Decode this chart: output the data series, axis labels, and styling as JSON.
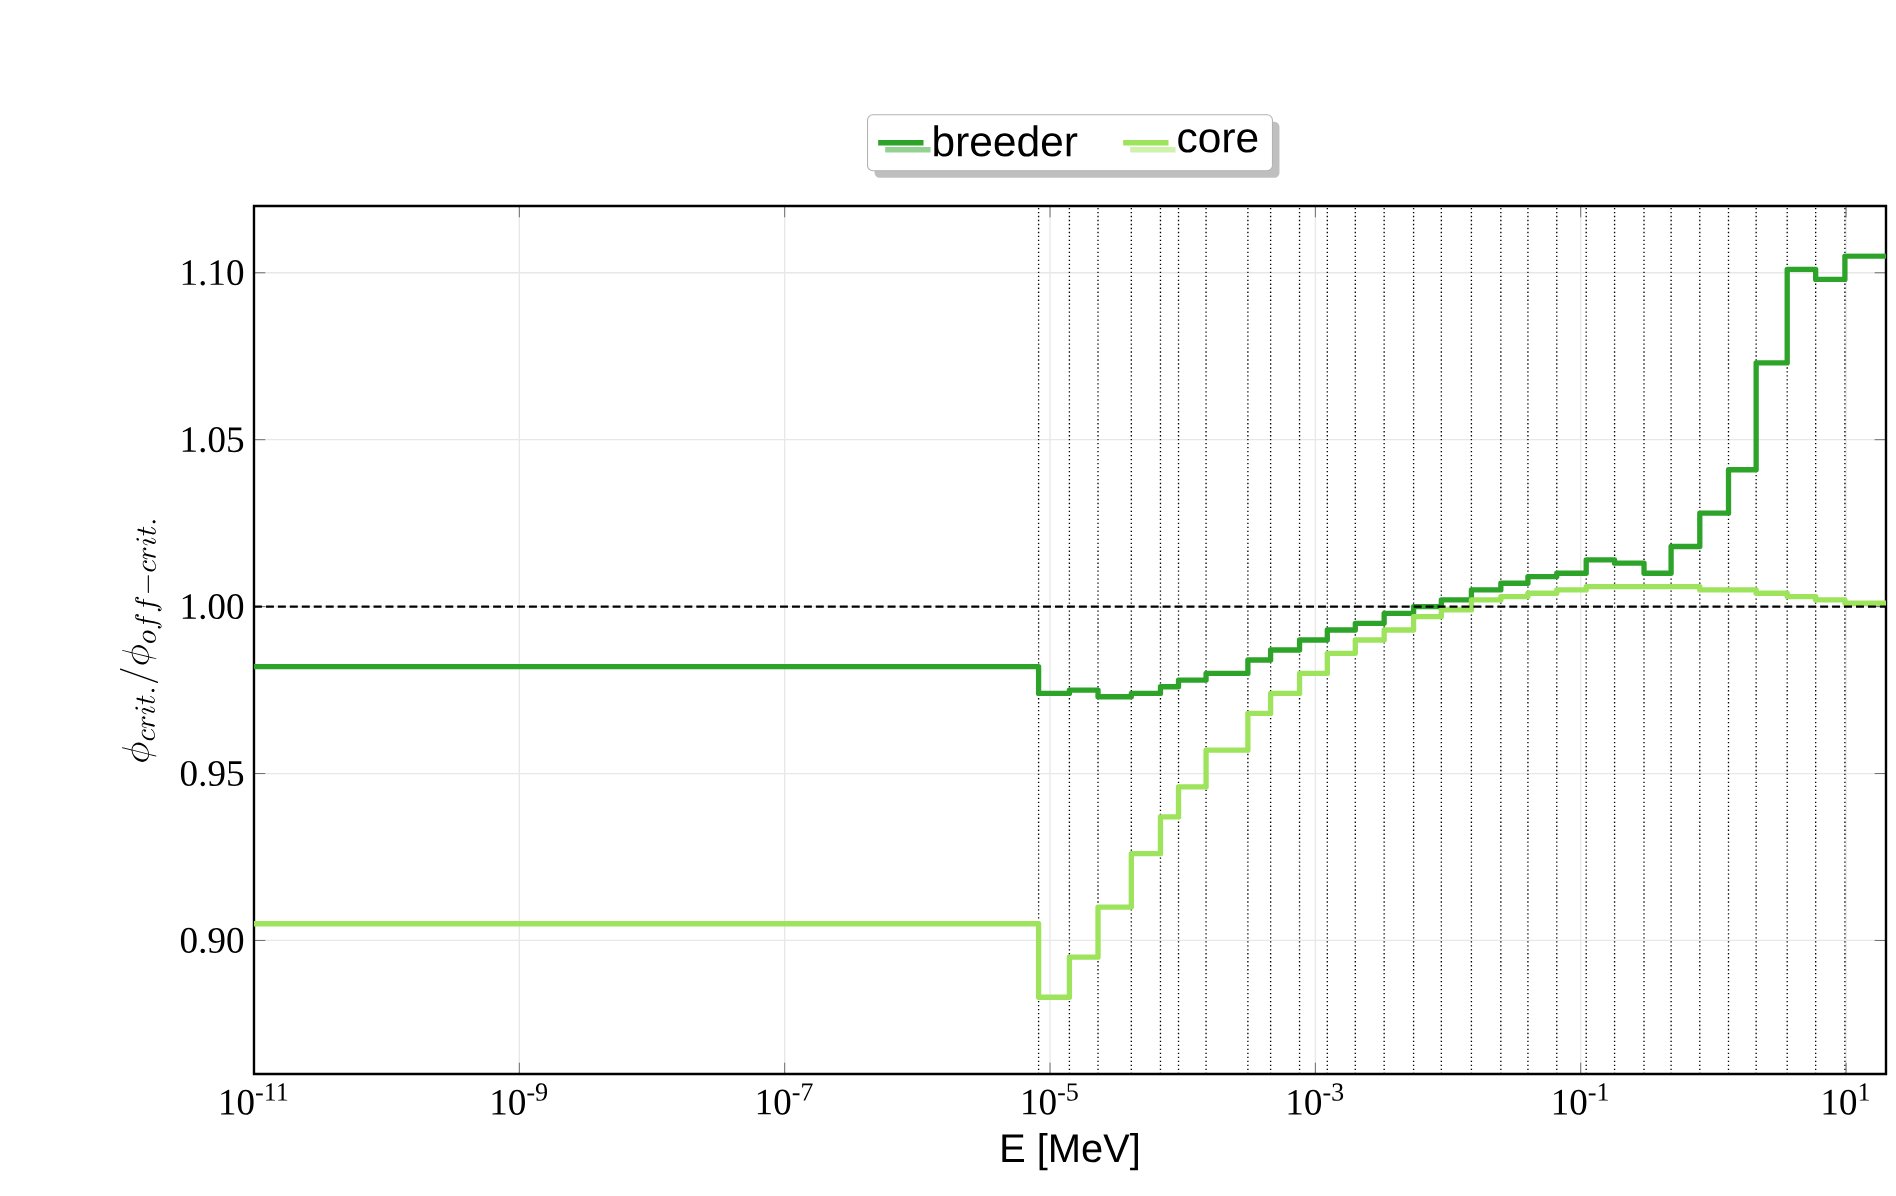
{
  "chart_data": {
    "type": "step",
    "xlabel": "E [MeV]",
    "ylabel": "\\phi_{crit.}/\\phi_{off-crit.}",
    "x": [
      1e-11,
      8.2e-06,
      1.4e-05,
      2.3e-05,
      4.1e-05,
      6.8e-05,
      9.3e-05,
      0.00015,
      0.00031,
      0.00046,
      0.00076,
      0.00123,
      0.002,
      0.0033,
      0.0055,
      0.0089,
      0.015,
      0.025,
      0.04,
      0.066,
      0.11,
      0.18,
      0.3,
      0.48,
      0.79,
      1.3,
      2.1,
      3.6,
      5.9,
      9.8
    ],
    "series": [
      {
        "name": "breeder",
        "color": "#2ea32a",
        "values": [
          0.982,
          0.974,
          0.975,
          0.973,
          0.974,
          0.976,
          0.978,
          0.98,
          0.984,
          0.987,
          0.99,
          0.993,
          0.995,
          0.998,
          1.0,
          1.002,
          1.005,
          1.007,
          1.009,
          1.01,
          1.014,
          1.013,
          1.01,
          1.018,
          1.028,
          1.041,
          1.073,
          1.101,
          1.098,
          1.105
        ]
      },
      {
        "name": "core",
        "color": "#9ee35c",
        "values": [
          0.905,
          0.883,
          0.895,
          0.91,
          0.926,
          0.937,
          0.946,
          0.957,
          0.968,
          0.974,
          0.98,
          0.986,
          0.99,
          0.993,
          0.997,
          0.999,
          1.002,
          1.003,
          1.004,
          1.005,
          1.006,
          1.006,
          1.006,
          1.006,
          1.005,
          1.005,
          1.004,
          1.003,
          1.002,
          1.001
        ]
      }
    ],
    "log": "x",
    "xlim": [
      1e-11,
      20
    ],
    "ylim": [
      0.86,
      1.12
    ],
    "xticks": [
      {
        "value": 1e-11,
        "label": "10$^{-11}$"
      },
      {
        "value": 1e-09,
        "label": "10$^{-9}$"
      },
      {
        "value": 1e-07,
        "label": "10$^{-7}$"
      },
      {
        "value": 1e-05,
        "label": "10$^{-5}$"
      },
      {
        "value": 0.001,
        "label": "10$^{-3}$"
      },
      {
        "value": 0.1,
        "label": "10$^{-1}$"
      },
      {
        "value": 10,
        "label": "10$^{1}$"
      }
    ],
    "yticks": [
      {
        "value": 0.9,
        "label": "0.90"
      },
      {
        "value": 0.95,
        "label": "0.95"
      },
      {
        "value": 1.0,
        "label": "1.00"
      },
      {
        "value": 1.05,
        "label": "1.05"
      },
      {
        "value": 1.1,
        "label": "1.10"
      }
    ],
    "grid": true,
    "legend": "top",
    "line_style": "solid",
    "ref_lines": [
      {
        "axis": "y",
        "value": 1.0,
        "color": "#000000",
        "line_style": "dashed"
      },
      {
        "axis": "x",
        "value": 8.2e-06,
        "color": "#000000",
        "line_style": "dotted"
      },
      {
        "axis": "x",
        "value": 1.4e-05,
        "color": "#000000",
        "line_style": "dotted"
      },
      {
        "axis": "x",
        "value": 2.3e-05,
        "color": "#000000",
        "line_style": "dotted"
      },
      {
        "axis": "x",
        "value": 4.1e-05,
        "color": "#000000",
        "line_style": "dotted"
      },
      {
        "axis": "x",
        "value": 6.8e-05,
        "color": "#000000",
        "line_style": "dotted"
      },
      {
        "axis": "x",
        "value": 9.3e-05,
        "color": "#000000",
        "line_style": "dotted"
      },
      {
        "axis": "x",
        "value": 0.00015,
        "color": "#000000",
        "line_style": "dotted"
      },
      {
        "axis": "x",
        "value": 0.00031,
        "color": "#000000",
        "line_style": "dotted"
      },
      {
        "axis": "x",
        "value": 0.00046,
        "color": "#000000",
        "line_style": "dotted"
      },
      {
        "axis": "x",
        "value": 0.00076,
        "color": "#000000",
        "line_style": "dotted"
      },
      {
        "axis": "x",
        "value": 0.00123,
        "color": "#000000",
        "line_style": "dotted"
      },
      {
        "axis": "x",
        "value": 0.002,
        "color": "#000000",
        "line_style": "dotted"
      },
      {
        "axis": "x",
        "value": 0.0033,
        "color": "#000000",
        "line_style": "dotted"
      },
      {
        "axis": "x",
        "value": 0.0055,
        "color": "#000000",
        "line_style": "dotted"
      },
      {
        "axis": "x",
        "value": 0.0089,
        "color": "#000000",
        "line_style": "dotted"
      },
      {
        "axis": "x",
        "value": 0.015,
        "color": "#000000",
        "line_style": "dotted"
      },
      {
        "axis": "x",
        "value": 0.025,
        "color": "#000000",
        "line_style": "dotted"
      },
      {
        "axis": "x",
        "value": 0.04,
        "color": "#000000",
        "line_style": "dotted"
      },
      {
        "axis": "x",
        "value": 0.066,
        "color": "#000000",
        "line_style": "dotted"
      },
      {
        "axis": "x",
        "value": 0.11,
        "color": "#000000",
        "line_style": "dotted"
      },
      {
        "axis": "x",
        "value": 0.18,
        "color": "#000000",
        "line_style": "dotted"
      },
      {
        "axis": "x",
        "value": 0.3,
        "color": "#000000",
        "line_style": "dotted"
      },
      {
        "axis": "x",
        "value": 0.48,
        "color": "#000000",
        "line_style": "dotted"
      },
      {
        "axis": "x",
        "value": 0.79,
        "color": "#000000",
        "line_style": "dotted"
      },
      {
        "axis": "x",
        "value": 1.3,
        "color": "#000000",
        "line_style": "dotted"
      },
      {
        "axis": "x",
        "value": 2.1,
        "color": "#000000",
        "line_style": "dotted"
      },
      {
        "axis": "x",
        "value": 3.6,
        "color": "#000000",
        "line_style": "dotted"
      },
      {
        "axis": "x",
        "value": 5.9,
        "color": "#000000",
        "line_style": "dotted"
      },
      {
        "axis": "x",
        "value": 9.8,
        "color": "#000000",
        "line_style": "dotted"
      }
    ]
  }
}
